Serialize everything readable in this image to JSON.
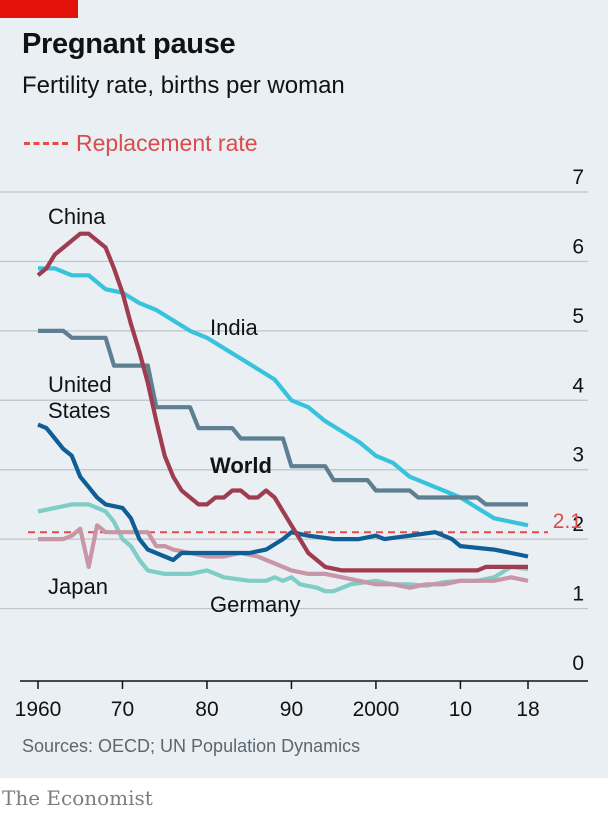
{
  "header": {
    "title": "Pregnant pause",
    "subtitle": "Fertility rate, births per woman"
  },
  "legend": {
    "replacement_label": "Replacement rate"
  },
  "source": "Sources: OECD; UN Population Dynamics",
  "brand": "The Economist",
  "colors": {
    "china": "#a03c50",
    "india": "#38c3dc",
    "world": "#5e7f91",
    "united_states": "#0f5e96",
    "japan": "#c896a6",
    "germany": "#7fcdc6",
    "replacement": "#e64a4a",
    "grid": "#bcc5cc"
  },
  "chart_data": {
    "type": "line",
    "title": "Pregnant pause",
    "ylabel": "Fertility rate, births per woman",
    "ylim": [
      0,
      7
    ],
    "xlim": [
      1960,
      2018
    ],
    "y_ticks": [
      "0",
      "1",
      "2",
      "3",
      "4",
      "5",
      "6",
      "7"
    ],
    "x_ticks": [
      {
        "value": 1960,
        "label": "1960"
      },
      {
        "value": 1970,
        "label": "70"
      },
      {
        "value": 1980,
        "label": "80"
      },
      {
        "value": 1990,
        "label": "90"
      },
      {
        "value": 2000,
        "label": "2000"
      },
      {
        "value": 2010,
        "label": "10"
      },
      {
        "value": 2018,
        "label": "18"
      }
    ],
    "replacement_rate": {
      "value": 2.1,
      "label": "2.1"
    },
    "series": [
      {
        "key": "india",
        "name": "India",
        "points": [
          [
            1960,
            5.9
          ],
          [
            1962,
            5.9
          ],
          [
            1964,
            5.8
          ],
          [
            1966,
            5.8
          ],
          [
            1968,
            5.6
          ],
          [
            1970,
            5.55
          ],
          [
            1972,
            5.4
          ],
          [
            1974,
            5.3
          ],
          [
            1976,
            5.15
          ],
          [
            1978,
            5.0
          ],
          [
            1980,
            4.9
          ],
          [
            1982,
            4.75
          ],
          [
            1984,
            4.6
          ],
          [
            1986,
            4.45
          ],
          [
            1988,
            4.3
          ],
          [
            1990,
            4.0
          ],
          [
            1992,
            3.9
          ],
          [
            1994,
            3.7
          ],
          [
            1996,
            3.55
          ],
          [
            1998,
            3.4
          ],
          [
            2000,
            3.2
          ],
          [
            2002,
            3.1
          ],
          [
            2004,
            2.9
          ],
          [
            2006,
            2.8
          ],
          [
            2008,
            2.7
          ],
          [
            2010,
            2.6
          ],
          [
            2012,
            2.45
          ],
          [
            2014,
            2.3
          ],
          [
            2016,
            2.25
          ],
          [
            2018,
            2.2
          ]
        ]
      },
      {
        "key": "world",
        "name": "World",
        "points": [
          [
            1960,
            5.0
          ],
          [
            1963,
            5.0
          ],
          [
            1964,
            4.9
          ],
          [
            1968,
            4.9
          ],
          [
            1969,
            4.5
          ],
          [
            1973,
            4.5
          ],
          [
            1974,
            3.9
          ],
          [
            1978,
            3.9
          ],
          [
            1979,
            3.6
          ],
          [
            1983,
            3.6
          ],
          [
            1984,
            3.45
          ],
          [
            1989,
            3.45
          ],
          [
            1990,
            3.05
          ],
          [
            1994,
            3.05
          ],
          [
            1995,
            2.85
          ],
          [
            1999,
            2.85
          ],
          [
            2000,
            2.7
          ],
          [
            2004,
            2.7
          ],
          [
            2005,
            2.6
          ],
          [
            2012,
            2.6
          ],
          [
            2013,
            2.5
          ],
          [
            2018,
            2.5
          ]
        ]
      },
      {
        "key": "china",
        "name": "China",
        "points": [
          [
            1960,
            5.8
          ],
          [
            1961,
            5.9
          ],
          [
            1962,
            6.1
          ],
          [
            1964,
            6.3
          ],
          [
            1965,
            6.4
          ],
          [
            1966,
            6.4
          ],
          [
            1967,
            6.3
          ],
          [
            1968,
            6.2
          ],
          [
            1969,
            5.9
          ],
          [
            1970,
            5.55
          ],
          [
            1971,
            5.1
          ],
          [
            1972,
            4.7
          ],
          [
            1973,
            4.25
          ],
          [
            1974,
            3.7
          ],
          [
            1975,
            3.2
          ],
          [
            1976,
            2.9
          ],
          [
            1977,
            2.7
          ],
          [
            1978,
            2.6
          ],
          [
            1979,
            2.5
          ],
          [
            1980,
            2.5
          ],
          [
            1981,
            2.6
          ],
          [
            1982,
            2.6
          ],
          [
            1983,
            2.7
          ],
          [
            1984,
            2.7
          ],
          [
            1985,
            2.6
          ],
          [
            1986,
            2.6
          ],
          [
            1987,
            2.7
          ],
          [
            1988,
            2.6
          ],
          [
            1989,
            2.4
          ],
          [
            1990,
            2.2
          ],
          [
            1991,
            2.0
          ],
          [
            1992,
            1.8
          ],
          [
            1993,
            1.7
          ],
          [
            1994,
            1.6
          ],
          [
            1996,
            1.55
          ],
          [
            2000,
            1.55
          ],
          [
            2005,
            1.55
          ],
          [
            2010,
            1.55
          ],
          [
            2012,
            1.55
          ],
          [
            2013,
            1.6
          ],
          [
            2018,
            1.6
          ]
        ]
      },
      {
        "key": "united_states",
        "name": "United States",
        "points": [
          [
            1960,
            3.65
          ],
          [
            1961,
            3.6
          ],
          [
            1962,
            3.45
          ],
          [
            1963,
            3.3
          ],
          [
            1964,
            3.2
          ],
          [
            1965,
            2.9
          ],
          [
            1966,
            2.75
          ],
          [
            1967,
            2.6
          ],
          [
            1968,
            2.5
          ],
          [
            1970,
            2.45
          ],
          [
            1971,
            2.3
          ],
          [
            1972,
            2.0
          ],
          [
            1973,
            1.85
          ],
          [
            1975,
            1.75
          ],
          [
            1976,
            1.7
          ],
          [
            1977,
            1.8
          ],
          [
            1980,
            1.8
          ],
          [
            1985,
            1.8
          ],
          [
            1987,
            1.85
          ],
          [
            1989,
            2.0
          ],
          [
            1990,
            2.1
          ],
          [
            1992,
            2.05
          ],
          [
            1995,
            2.0
          ],
          [
            1998,
            2.0
          ],
          [
            2000,
            2.05
          ],
          [
            2001,
            2.0
          ],
          [
            2004,
            2.05
          ],
          [
            2007,
            2.1
          ],
          [
            2009,
            2.0
          ],
          [
            2010,
            1.9
          ],
          [
            2014,
            1.85
          ],
          [
            2016,
            1.8
          ],
          [
            2018,
            1.75
          ]
        ]
      },
      {
        "key": "japan",
        "name": "Japan",
        "points": [
          [
            1960,
            2.0
          ],
          [
            1962,
            2.0
          ],
          [
            1963,
            2.0
          ],
          [
            1964,
            2.05
          ],
          [
            1965,
            2.15
          ],
          [
            1966,
            1.6
          ],
          [
            1967,
            2.2
          ],
          [
            1968,
            2.1
          ],
          [
            1969,
            2.1
          ],
          [
            1970,
            2.1
          ],
          [
            1972,
            2.1
          ],
          [
            1973,
            2.1
          ],
          [
            1974,
            1.9
          ],
          [
            1975,
            1.9
          ],
          [
            1976,
            1.85
          ],
          [
            1978,
            1.8
          ],
          [
            1980,
            1.75
          ],
          [
            1982,
            1.75
          ],
          [
            1984,
            1.8
          ],
          [
            1986,
            1.75
          ],
          [
            1988,
            1.65
          ],
          [
            1990,
            1.55
          ],
          [
            1992,
            1.5
          ],
          [
            1994,
            1.5
          ],
          [
            1996,
            1.45
          ],
          [
            1998,
            1.4
          ],
          [
            2000,
            1.35
          ],
          [
            2002,
            1.35
          ],
          [
            2004,
            1.3
          ],
          [
            2006,
            1.35
          ],
          [
            2008,
            1.35
          ],
          [
            2010,
            1.4
          ],
          [
            2012,
            1.4
          ],
          [
            2014,
            1.4
          ],
          [
            2016,
            1.45
          ],
          [
            2018,
            1.4
          ]
        ]
      },
      {
        "key": "germany",
        "name": "Germany",
        "points": [
          [
            1960,
            2.4
          ],
          [
            1962,
            2.45
          ],
          [
            1964,
            2.5
          ],
          [
            1966,
            2.5
          ],
          [
            1968,
            2.4
          ],
          [
            1969,
            2.25
          ],
          [
            1970,
            2.0
          ],
          [
            1971,
            1.9
          ],
          [
            1972,
            1.7
          ],
          [
            1973,
            1.55
          ],
          [
            1975,
            1.5
          ],
          [
            1978,
            1.5
          ],
          [
            1980,
            1.55
          ],
          [
            1982,
            1.45
          ],
          [
            1985,
            1.4
          ],
          [
            1987,
            1.4
          ],
          [
            1988,
            1.45
          ],
          [
            1989,
            1.4
          ],
          [
            1990,
            1.45
          ],
          [
            1991,
            1.35
          ],
          [
            1993,
            1.3
          ],
          [
            1994,
            1.25
          ],
          [
            1995,
            1.25
          ],
          [
            1997,
            1.35
          ],
          [
            2000,
            1.4
          ],
          [
            2002,
            1.35
          ],
          [
            2004,
            1.35
          ],
          [
            2006,
            1.33
          ],
          [
            2008,
            1.38
          ],
          [
            2010,
            1.4
          ],
          [
            2012,
            1.4
          ],
          [
            2014,
            1.45
          ],
          [
            2016,
            1.6
          ],
          [
            2018,
            1.57
          ]
        ]
      }
    ],
    "annotations": [
      {
        "label_lines": [
          "China"
        ],
        "series": "china",
        "placement": "above start"
      },
      {
        "label_lines": [
          "India"
        ],
        "series": "india",
        "placement": "below line"
      },
      {
        "label_lines": [
          "United",
          "States"
        ],
        "series": "united_states",
        "placement": "above start"
      },
      {
        "label_lines": [
          "World"
        ],
        "series": "world",
        "placement": "below line",
        "bold": true
      },
      {
        "label_lines": [
          "Japan"
        ],
        "series": "japan",
        "placement": "below start"
      },
      {
        "label_lines": [
          "Germany"
        ],
        "series": "germany",
        "placement": "below line"
      }
    ]
  }
}
